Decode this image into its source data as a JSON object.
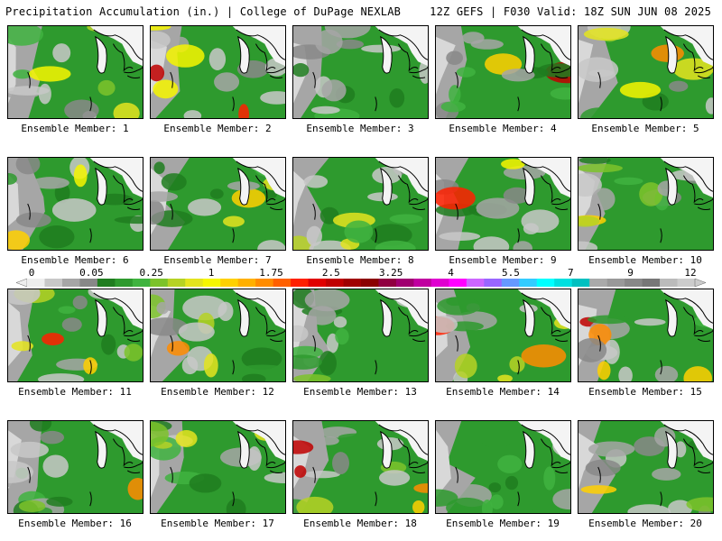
{
  "header": {
    "left": "Precipitation Accumulation (in.) | College of DuPage NEXLAB",
    "right": "12Z GEFS | F030 Valid: 18Z SUN JUN 08 2025"
  },
  "colorbar": {
    "labels": [
      "0",
      "0.05",
      "0.25",
      "1",
      "1.75",
      "2.5",
      "3.25",
      "4",
      "5.5",
      "7",
      "9",
      "12"
    ],
    "colors": [
      "#eeeeee",
      "#c8c8c8",
      "#a6a6a6",
      "#888888",
      "#1f7d1f",
      "#2e9a2e",
      "#3fb33f",
      "#7cc32a",
      "#b6d224",
      "#e4e41e",
      "#f6f600",
      "#ffd000",
      "#ffb000",
      "#ff8c00",
      "#ff6000",
      "#ff2000",
      "#e00000",
      "#c00000",
      "#a00000",
      "#8b0000",
      "#900040",
      "#a00070",
      "#c000a0",
      "#e000d0",
      "#ff00ff",
      "#cc66ff",
      "#9966ff",
      "#6699ff",
      "#33ccff",
      "#00ffff",
      "#00e0e0",
      "#00c0c0",
      "#aaaaaa",
      "#999999",
      "#888888",
      "#777777",
      "#bbbbbb",
      "#cccccc"
    ]
  },
  "panels": [
    {
      "label": "Ensemble Member: 1"
    },
    {
      "label": "Ensemble Member: 2"
    },
    {
      "label": "Ensemble Member: 3"
    },
    {
      "label": "Ensemble Member: 4"
    },
    {
      "label": "Ensemble Member: 5"
    },
    {
      "label": "Ensemble Member: 6"
    },
    {
      "label": "Ensemble Member: 7"
    },
    {
      "label": "Ensemble Member: 8"
    },
    {
      "label": "Ensemble Member: 9"
    },
    {
      "label": "Ensemble Member: 10"
    },
    {
      "label": "Ensemble Member: 11"
    },
    {
      "label": "Ensemble Member: 12"
    },
    {
      "label": "Ensemble Member: 13"
    },
    {
      "label": "Ensemble Member: 14"
    },
    {
      "label": "Ensemble Member: 15"
    },
    {
      "label": "Ensemble Member: 16"
    },
    {
      "label": "Ensemble Member: 17"
    },
    {
      "label": "Ensemble Member: 18"
    },
    {
      "label": "Ensemble Member: 19"
    },
    {
      "label": "Ensemble Member: 20"
    }
  ]
}
